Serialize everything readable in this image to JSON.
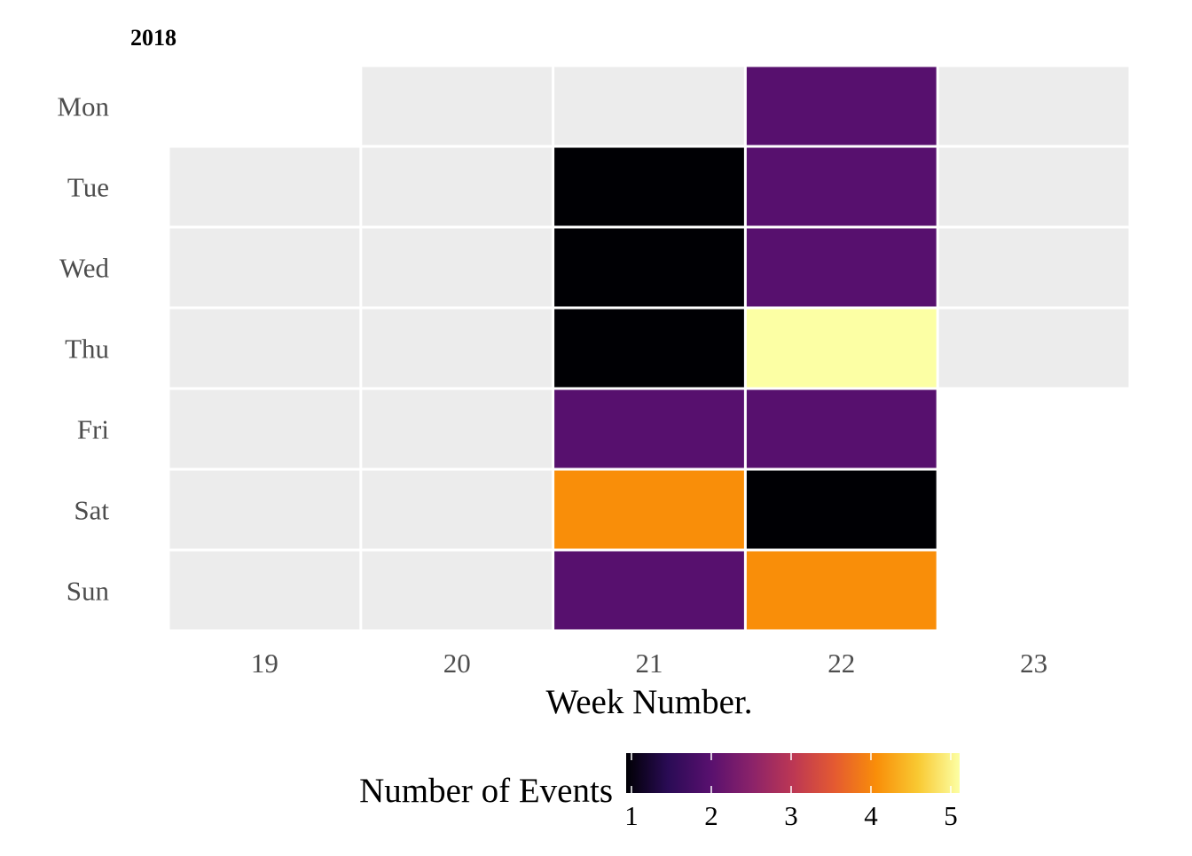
{
  "chart_data": {
    "type": "heatmap",
    "title": "2018",
    "xlabel": "Week Number.",
    "ylabel": "",
    "x_categories": [
      "19",
      "20",
      "21",
      "22",
      "23"
    ],
    "y_categories": [
      "Mon",
      "Tue",
      "Wed",
      "Thu",
      "Fri",
      "Sat",
      "Sun"
    ],
    "cells": [
      {
        "week": "20",
        "day": "Mon",
        "value": null
      },
      {
        "week": "21",
        "day": "Mon",
        "value": null
      },
      {
        "week": "22",
        "day": "Mon",
        "value": 2
      },
      {
        "week": "23",
        "day": "Mon",
        "value": null
      },
      {
        "week": "19",
        "day": "Tue",
        "value": null
      },
      {
        "week": "20",
        "day": "Tue",
        "value": null
      },
      {
        "week": "21",
        "day": "Tue",
        "value": 1
      },
      {
        "week": "22",
        "day": "Tue",
        "value": 2
      },
      {
        "week": "23",
        "day": "Tue",
        "value": null
      },
      {
        "week": "19",
        "day": "Wed",
        "value": null
      },
      {
        "week": "20",
        "day": "Wed",
        "value": null
      },
      {
        "week": "21",
        "day": "Wed",
        "value": 1
      },
      {
        "week": "22",
        "day": "Wed",
        "value": 2
      },
      {
        "week": "23",
        "day": "Wed",
        "value": null
      },
      {
        "week": "19",
        "day": "Thu",
        "value": null
      },
      {
        "week": "20",
        "day": "Thu",
        "value": null
      },
      {
        "week": "21",
        "day": "Thu",
        "value": 1
      },
      {
        "week": "22",
        "day": "Thu",
        "value": 5
      },
      {
        "week": "23",
        "day": "Thu",
        "value": null
      },
      {
        "week": "19",
        "day": "Fri",
        "value": null
      },
      {
        "week": "20",
        "day": "Fri",
        "value": null
      },
      {
        "week": "21",
        "day": "Fri",
        "value": 2
      },
      {
        "week": "22",
        "day": "Fri",
        "value": 2
      },
      {
        "week": "19",
        "day": "Sat",
        "value": null
      },
      {
        "week": "20",
        "day": "Sat",
        "value": null
      },
      {
        "week": "21",
        "day": "Sat",
        "value": 4
      },
      {
        "week": "22",
        "day": "Sat",
        "value": 1
      },
      {
        "week": "19",
        "day": "Sun",
        "value": null
      },
      {
        "week": "20",
        "day": "Sun",
        "value": null
      },
      {
        "week": "21",
        "day": "Sun",
        "value": 2
      },
      {
        "week": "22",
        "day": "Sun",
        "value": 4
      }
    ],
    "legend": {
      "title": "Number of Events",
      "position": "bottom",
      "min": 1,
      "max": 5,
      "ticks": [
        1,
        2,
        3,
        4,
        5
      ],
      "palette": "inferno",
      "color_stops": [
        "#000004",
        "#2a0b55",
        "#57106e",
        "#8a226a",
        "#bc3754",
        "#e45a31",
        "#f98e09",
        "#f9c932",
        "#fcffa4"
      ]
    },
    "na_color": "#ececec",
    "cell_border_color": "#ffffff",
    "grid": false
  }
}
